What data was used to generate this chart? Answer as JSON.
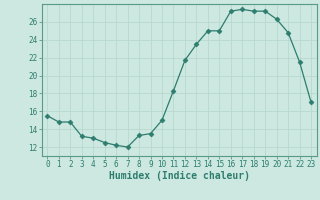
{
  "x": [
    0,
    1,
    2,
    3,
    4,
    5,
    6,
    7,
    8,
    9,
    10,
    11,
    12,
    13,
    14,
    15,
    16,
    17,
    18,
    19,
    20,
    21,
    22,
    23
  ],
  "y": [
    15.5,
    14.8,
    14.8,
    13.2,
    13.0,
    12.5,
    12.2,
    12.0,
    13.3,
    13.5,
    15.0,
    18.3,
    21.7,
    23.5,
    25.0,
    25.0,
    27.2,
    27.4,
    27.2,
    27.2,
    26.3,
    24.8,
    21.5,
    17.0
  ],
  "line_color": "#2e7d6e",
  "marker": "D",
  "marker_size": 2.5,
  "bg_color": "#cce8e0",
  "grid_color": "#b8d8d0",
  "xlabel": "Humidex (Indice chaleur)",
  "ylim": [
    11,
    28
  ],
  "yticks": [
    12,
    14,
    16,
    18,
    20,
    22,
    24,
    26
  ],
  "xlim": [
    -0.5,
    23.5
  ],
  "xlabel_fontsize": 7,
  "tick_fontsize": 5.5,
  "tick_color": "#2e7d6e",
  "axis_color": "#2e7d6e",
  "spine_color": "#5a9a8a"
}
